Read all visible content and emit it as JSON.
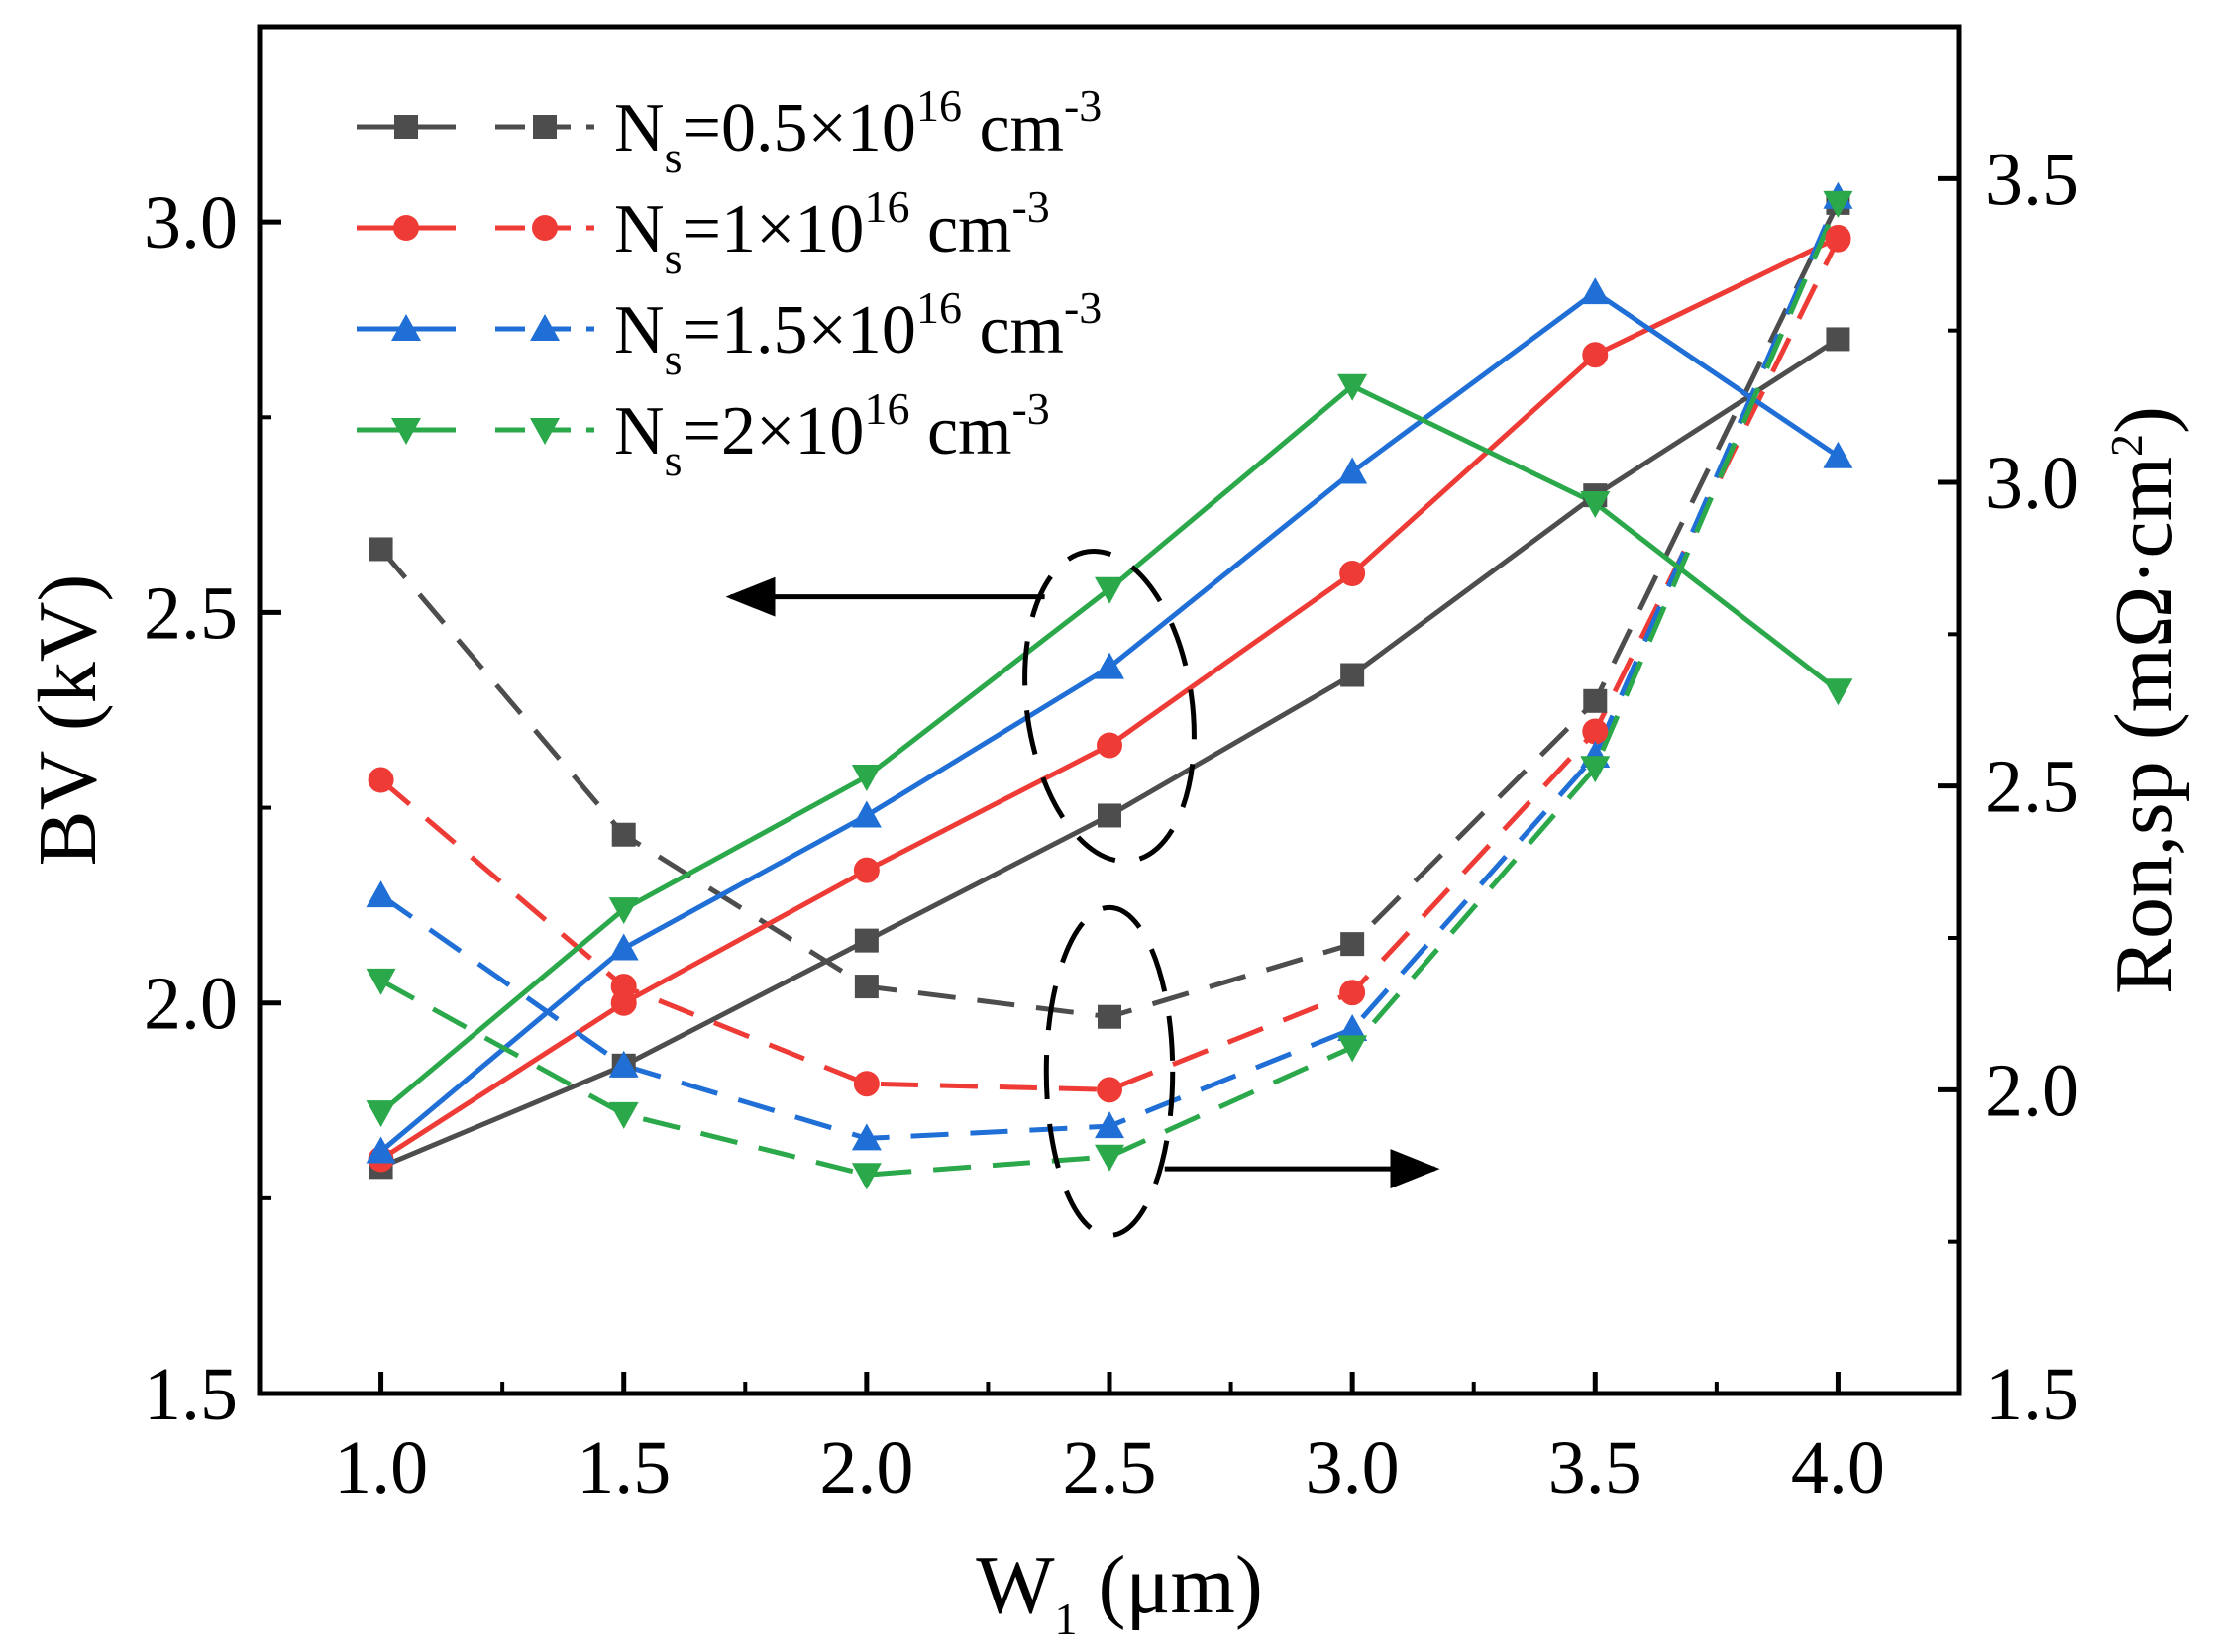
{
  "chart_data": {
    "type": "line",
    "x": [
      1.0,
      1.5,
      2.0,
      2.5,
      3.0,
      3.5,
      4.0
    ],
    "x_tick_labels": [
      "1.0",
      "1.5",
      "2.0",
      "2.5",
      "3.0",
      "3.5",
      "4.0"
    ],
    "xlim": [
      0.75,
      4.25
    ],
    "xlabel": {
      "main": "W",
      "sub": "1",
      "rest": "  (μm)"
    },
    "y_left": {
      "label": "BV  (kV)",
      "lim": [
        1.5,
        3.25
      ],
      "ticks": [
        1.5,
        2.0,
        2.5,
        3.0
      ],
      "tick_labels": [
        "1.5",
        "2.0",
        "2.5",
        "3.0"
      ]
    },
    "y_right": {
      "label_main": "Ron,sp  (mΩ·cm",
      "label_sup": "2",
      "label_end": ")",
      "lim": [
        1.5,
        3.75
      ],
      "ticks": [
        1.5,
        2.0,
        2.5,
        3.0,
        3.5
      ],
      "tick_labels": [
        "1.5",
        "2.0",
        "2.5",
        "3.0",
        "3.5"
      ]
    },
    "grid": false,
    "legend_position": "top-left",
    "series": [
      {
        "legend_prefix": "N",
        "legend_sub": "s",
        "legend_value": "=0.5×10",
        "legend_sup": "16",
        "legend_unit": " cm",
        "legend_unit_sup": "-3",
        "color": "#4d4d4d",
        "marker": "square",
        "bv": [
          1.79,
          1.92,
          2.08,
          2.24,
          2.42,
          2.65,
          2.85
        ],
        "ron": [
          2.89,
          2.42,
          2.17,
          2.12,
          2.24,
          2.64,
          3.46
        ]
      },
      {
        "legend_prefix": "N",
        "legend_sub": "s",
        "legend_value": "=1×10",
        "legend_sup": "16",
        "legend_unit": " cm",
        "legend_unit_sup": "-3",
        "color": "#ef3b36",
        "marker": "circle",
        "bv": [
          1.8,
          2.0,
          2.17,
          2.33,
          2.55,
          2.83,
          2.98
        ],
        "ron": [
          2.51,
          2.17,
          2.01,
          2.0,
          2.16,
          2.59,
          3.4
        ]
      },
      {
        "legend_prefix": "N",
        "legend_sub": "s",
        "legend_value": "=1.5×10",
        "legend_sup": "16",
        "legend_unit": " cm",
        "legend_unit_sup": "-3",
        "color": "#1f6fd6",
        "marker": "triangle-up",
        "bv": [
          1.81,
          2.07,
          2.24,
          2.43,
          2.68,
          2.91,
          2.7
        ],
        "ron": [
          2.32,
          2.04,
          1.92,
          1.94,
          2.1,
          2.55,
          3.47
        ]
      },
      {
        "legend_prefix": "N",
        "legend_sub": "s",
        "legend_value": "=2×10",
        "legend_sup": "16",
        "legend_unit": " cm",
        "legend_unit_sup": "-3",
        "color": "#2aa84a",
        "marker": "triangle-down",
        "bv": [
          1.86,
          2.12,
          2.29,
          2.53,
          2.79,
          2.64,
          2.4
        ],
        "ron": [
          2.18,
          1.96,
          1.86,
          1.89,
          2.07,
          2.53,
          3.46
        ]
      }
    ],
    "annotations": {
      "left_group": {
        "x": 2.5,
        "rx": 0.17,
        "y_center_bv": 2.38,
        "ry_bv": 0.2,
        "arrow": "left"
      },
      "right_group": {
        "x": 2.5,
        "rx": 0.13,
        "y_center_ron": 2.03,
        "ry_ron": 0.27,
        "arrow": "right"
      }
    }
  }
}
